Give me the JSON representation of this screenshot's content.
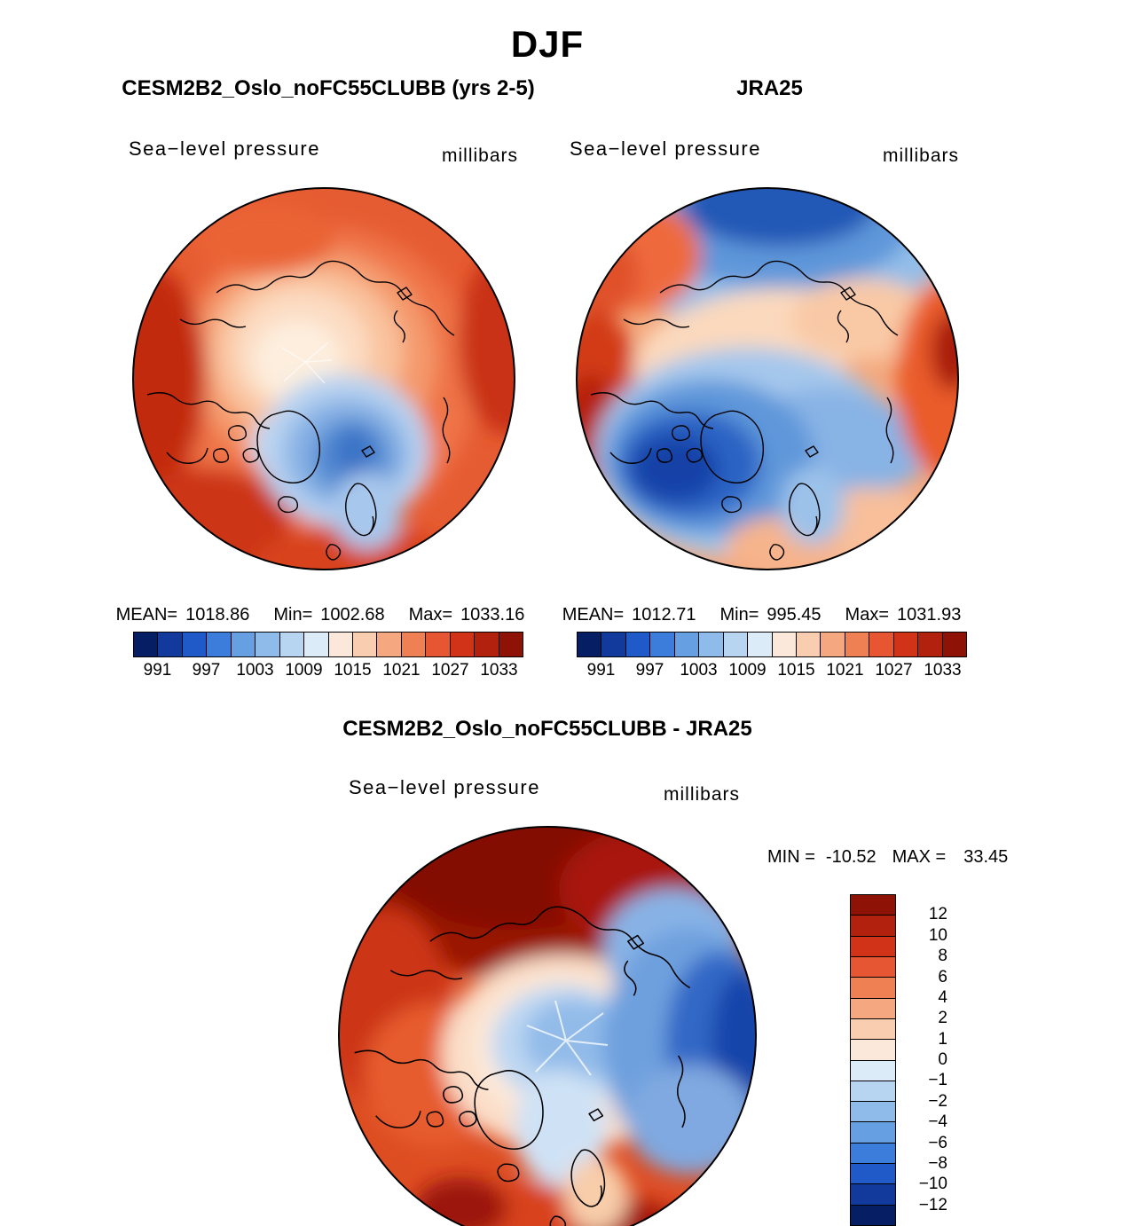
{
  "page": {
    "title": "DJF"
  },
  "panels": {
    "model": {
      "title": "CESM2B2_Oslo_noFC55CLUBB (yrs 2-5)",
      "field_label": "Sea−level pressure",
      "units_label": "millibars",
      "stats": {
        "mean_label": "MEAN=",
        "mean_value": "1018.86",
        "min_label": "Min=",
        "min_value": "1002.68",
        "max_label": "Max=",
        "max_value": "1033.16"
      }
    },
    "reference": {
      "title": "JRA25",
      "field_label": "Sea−level pressure",
      "units_label": "millibars",
      "stats": {
        "mean_label": "MEAN=",
        "mean_value": "1012.71",
        "min_label": "Min=",
        "min_value": "995.45",
        "max_label": "Max=",
        "max_value": "1031.93"
      }
    },
    "difference": {
      "title": "CESM2B2_Oslo_noFC55CLUBB - JRA25",
      "field_label": "Sea−level pressure",
      "units_label": "millibars",
      "stats": {
        "min_label": "MIN =",
        "min_value": "-10.52",
        "max_label": "MAX =",
        "max_value": "33.45"
      }
    }
  },
  "colors": {
    "background": "#ffffff",
    "map_outline": "#000000",
    "colormap": [
      "#061e64",
      "#123a9c",
      "#1f5ac8",
      "#3c7ddb",
      "#66a0e2",
      "#8fbbea",
      "#b7d4f1",
      "#dcebf8",
      "#fce8da",
      "#f9cdb0",
      "#f5a880",
      "#ef8054",
      "#e65632",
      "#d03318",
      "#b2200e",
      "#8e1306"
    ]
  },
  "chart_data": [
    {
      "type": "heatmap",
      "subtype": "polar-stereographic-contour-map",
      "season": "DJF",
      "title": "CESM2B2_Oslo_noFC55CLUBB (yrs 2-5)",
      "field": "Sea−level pressure",
      "units": "millibars",
      "stats": {
        "mean": 1018.86,
        "min": 1002.68,
        "max": 1033.16
      },
      "colorbar": {
        "orientation": "horizontal",
        "n_cells": 16,
        "tick_labels": [
          "991",
          "997",
          "1003",
          "1009",
          "1015",
          "1021",
          "1027",
          "1033"
        ],
        "tick_interval_mb": 6,
        "contour_interval_mb": 3
      }
    },
    {
      "type": "heatmap",
      "subtype": "polar-stereographic-contour-map",
      "season": "DJF",
      "title": "JRA25",
      "field": "Sea−level pressure",
      "units": "millibars",
      "stats": {
        "mean": 1012.71,
        "min": 995.45,
        "max": 1031.93
      },
      "colorbar": {
        "orientation": "horizontal",
        "n_cells": 16,
        "tick_labels": [
          "991",
          "997",
          "1003",
          "1009",
          "1015",
          "1021",
          "1027",
          "1033"
        ],
        "tick_interval_mb": 6,
        "contour_interval_mb": 3
      }
    },
    {
      "type": "heatmap",
      "subtype": "polar-stereographic-contour-map-difference",
      "season": "DJF",
      "title": "CESM2B2_Oslo_noFC55CLUBB - JRA25",
      "field": "Sea−level pressure",
      "units": "millibars",
      "stats": {
        "min": -10.52,
        "max": 33.45
      },
      "colorbar": {
        "orientation": "vertical",
        "n_cells": 16,
        "tick_labels": [
          "12",
          "10",
          "8",
          "6",
          "4",
          "2",
          "1",
          "0",
          "−1",
          "−2",
          "−4",
          "−6",
          "−8",
          "−10",
          "−12"
        ]
      }
    }
  ]
}
